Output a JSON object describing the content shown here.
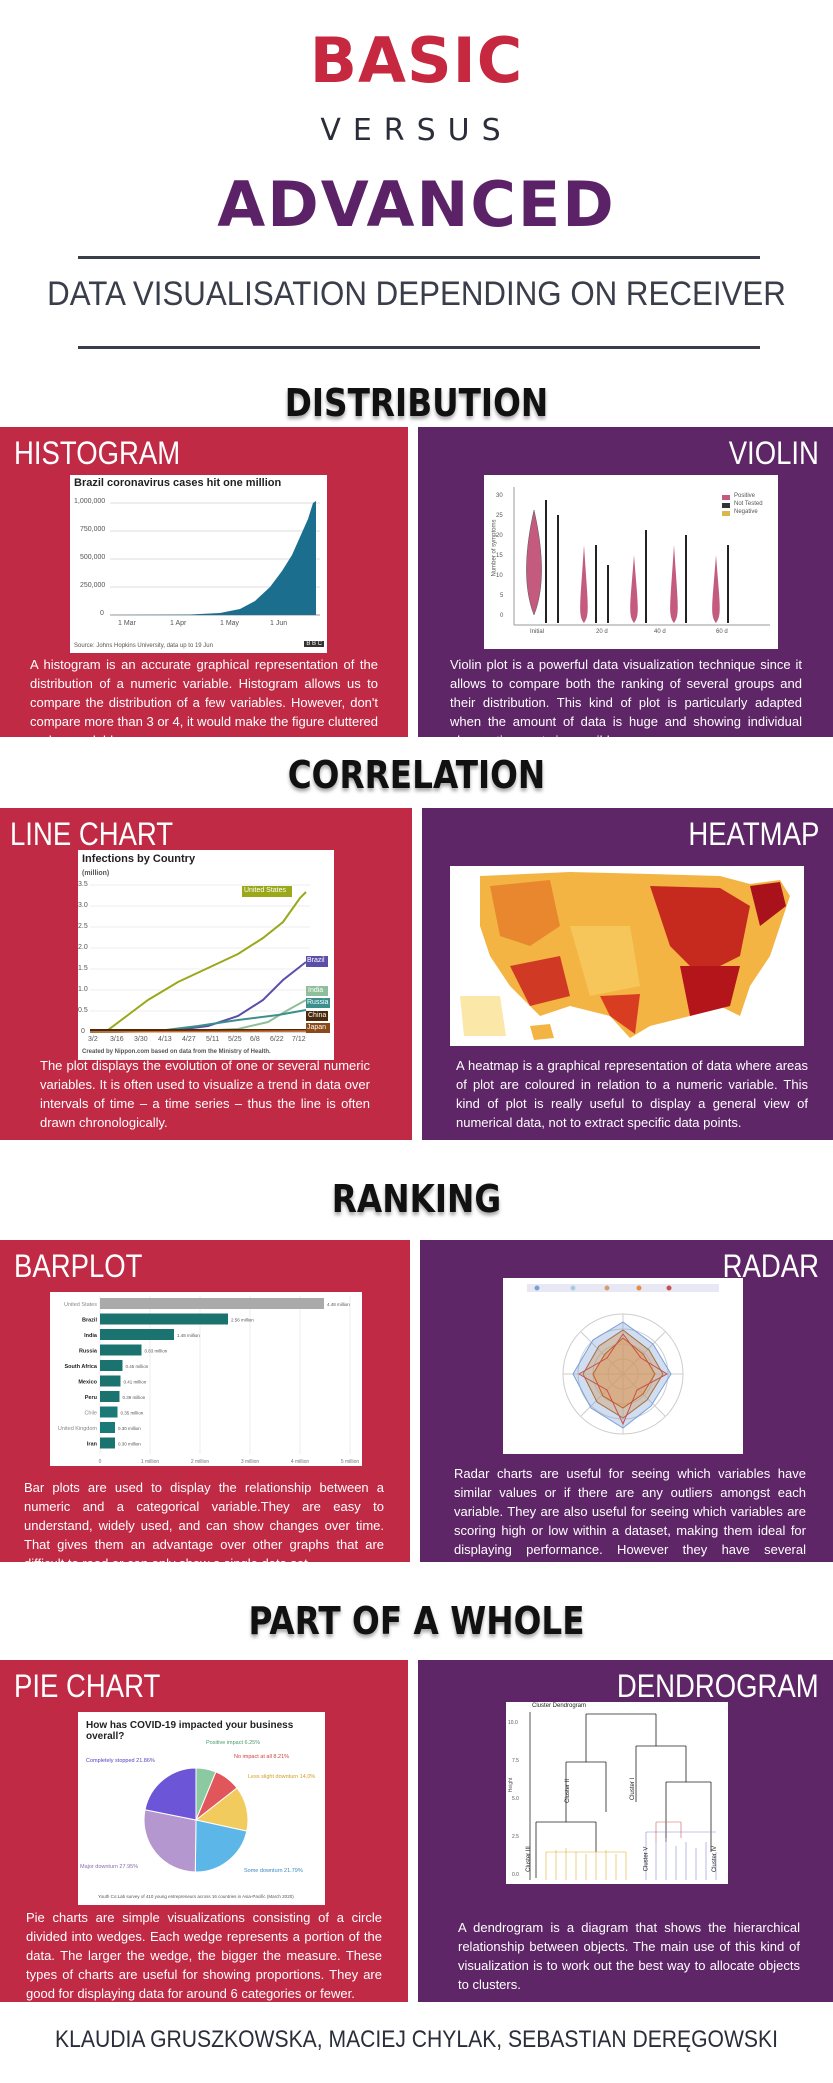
{
  "header": {
    "basic": "BASIC",
    "versus": "VERSUS",
    "advanced": "ADVANCED",
    "subtitle": "DATA VISUALISATION DEPENDING ON RECEIVER"
  },
  "colors": {
    "red": "#c12a45",
    "purple": "#5f2667",
    "basic_title": "#c6283f",
    "advanced_title": "#5c2268",
    "dark": "#2b2e3a"
  },
  "sections": {
    "distribution": "DISTRIBUTION",
    "correlation": "CORRELATION",
    "ranking": "RANKING",
    "part_of_whole": "PART OF A WHOLE"
  },
  "panels": {
    "histogram": {
      "title": "HISTOGRAM",
      "text": "A histogram is an accurate graphical representation of the distribution of a numeric variable. Histogram allows us to compare the distribution of a few variables. However, don't compare more than 3 or 4, it would make the figure cluttered and unreadable.",
      "chart_title": "Brazil coronavirus cases hit one million",
      "y_ticks": [
        "1,000,000",
        "750,000",
        "500,000",
        "250,000",
        "0"
      ],
      "x_ticks": [
        "1 Mar",
        "1 Apr",
        "1 May",
        "1 Jun"
      ],
      "source": "Source: Johns Hopkins University, data up to 19 Jun",
      "badge": "B B C"
    },
    "violin": {
      "title": "VIOLIN",
      "text": "Violin plot is a powerful data visualization technique since it allows to compare both the ranking of several groups and their distribution. This kind of plot is particularly adapted when the amount of data is huge and showing individual observations gets impossible.",
      "legend": [
        "Positive",
        "Not Tested",
        "Negative"
      ],
      "y_label": "Number of symptoms",
      "y_ticks": [
        "30",
        "25",
        "20",
        "15",
        "10",
        "5",
        "0"
      ],
      "x_ticks": [
        "Initial",
        "20 d",
        "40 d",
        "60 d"
      ]
    },
    "line_chart": {
      "title": "LINE CHART",
      "text": "The plot displays the evolution of one or several numeric variables. It is often used to visualize a trend in data over intervals of time – a time series – thus the line is often drawn chronologically.",
      "chart_title": "Infections by Country",
      "unit": "(million)",
      "y_ticks": [
        "3.5",
        "3.0",
        "2.5",
        "2.0",
        "1.5",
        "1.0",
        "0.5",
        "0"
      ],
      "x_ticks": [
        "3/2",
        "3/16",
        "3/30",
        "4/13",
        "4/27",
        "5/11",
        "5/25",
        "6/8",
        "6/22",
        "7/12"
      ],
      "series": [
        "United States",
        "Brazil",
        "India",
        "Russia",
        "China",
        "Japan"
      ],
      "credit": "Created by Nippon.com based on data from the Ministry of Health."
    },
    "heatmap": {
      "title": "HEATMAP",
      "text": "A heatmap is a graphical representation of data where areas of plot are coloured in relation to a numeric variable. This kind of plot is really useful to display a general view of numerical data, not to extract specific data points."
    },
    "barplot": {
      "title": "BARPLOT",
      "text": "Bar plots are used to display the relationship between a numeric and a categorical variable.They are easy to understand, widely used, and can show changes over time. That gives them an advantage over other graphs that are difficult to read or can only show a single data set.",
      "rows": [
        {
          "label": "United States",
          "value_text": "4.48 million",
          "value": 4.48
        },
        {
          "label": "Brazil",
          "value_text": "2.56 million",
          "value": 2.56
        },
        {
          "label": "India",
          "value_text": "1.48 million",
          "value": 1.48
        },
        {
          "label": "Russia",
          "value_text": "0.83 million",
          "value": 0.83
        },
        {
          "label": "South Africa",
          "value_text": "0.45 million",
          "value": 0.45
        },
        {
          "label": "Mexico",
          "value_text": "0.41 million",
          "value": 0.41
        },
        {
          "label": "Peru",
          "value_text": "0.39 million",
          "value": 0.39
        },
        {
          "label": "Chile",
          "value_text": "0.35 million",
          "value": 0.35
        },
        {
          "label": "United Kingdom",
          "value_text": "0.30 million",
          "value": 0.3
        },
        {
          "label": "Iran",
          "value_text": "0.30 million",
          "value": 0.3
        }
      ],
      "x_ticks": [
        "0",
        "1 million",
        "2 million",
        "3 million",
        "4 million",
        "5 million"
      ]
    },
    "radar": {
      "title": "RADAR",
      "text": "Radar charts are useful for seeing which variables have similar values or if there are any outliers amongst each variable. They are also useful for seeing which variables are scoring high or low within a dataset, making them ideal for displaying performance. However they have several downsides and should be used with care."
    },
    "pie_chart": {
      "title": "PIE CHART",
      "text": "Pie charts are simple visualizations consisting of a circle divided into wedges. Each wedge represents a portion of the data. The larger the wedge, the bigger the measure. These types of charts are useful for showing proportions. They are good for displaying data for around 6 categories or fewer.",
      "chart_title": "How has COVID-19 impacted your business overall?",
      "slices": [
        {
          "label": "Positive impact 6.25%",
          "value": 6.25,
          "color": "#8bc9a0"
        },
        {
          "label": "No impact at all 8.21%",
          "value": 8.21,
          "color": "#e0565b"
        },
        {
          "label": "Less slight downturn 14.0%",
          "value": 14.0,
          "color": "#f2cb5f"
        },
        {
          "label": "Some downturn 21.79%",
          "value": 21.79,
          "color": "#5db6e8"
        },
        {
          "label": "Major downturn 27.95%",
          "value": 27.95,
          "color": "#b497cf"
        },
        {
          "label": "Completely stopped 21.86%",
          "value": 21.86,
          "color": "#6c55d6"
        }
      ],
      "source": "Youth Co:Lab survey of 410 young entrepreneurs across 16 countries in Asia-Pacific (March 2020)"
    },
    "dendrogram": {
      "title": "DENDROGRAM",
      "text": "A dendrogram is a diagram that shows the hierarchical relationship between objects. The main use of this kind of visualization is to work out the best way to allocate objects to clusters.",
      "chart_title": "Cluster Dendrogram",
      "y_label": "Height",
      "y_ticks": [
        "10.0",
        "7.5",
        "5.0",
        "2.5",
        "0.0"
      ],
      "clusters": [
        "Cluster II",
        "Cluster I",
        "Cluster III",
        "Cluster IV",
        "Cluster V"
      ]
    }
  },
  "footer": "KLAUDIA GRUSZKOWSKA, MACIEJ CHYLAK, SEBASTIAN DERĘGOWSKI"
}
